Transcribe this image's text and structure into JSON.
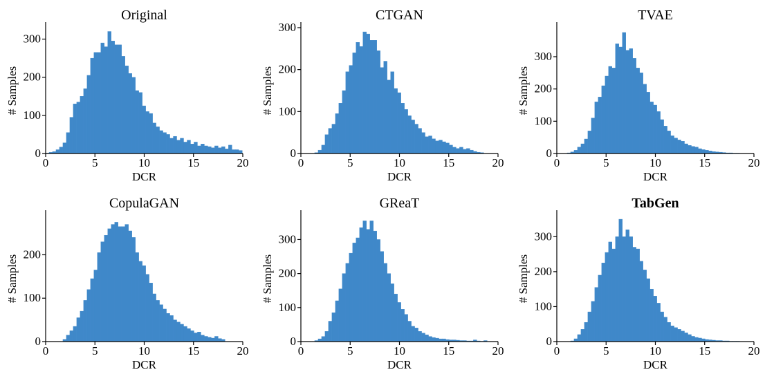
{
  "colors": {
    "bar": "#3f88c9",
    "axis": "#000000"
  },
  "chart_data": [
    {
      "type": "bar",
      "title": "Original",
      "title_bold": false,
      "xlabel": "DCR",
      "ylabel": "# Samples",
      "xlim": [
        0,
        20
      ],
      "ylim": [
        0,
        330
      ],
      "xticks": [
        0,
        5,
        10,
        15,
        20
      ],
      "yticks": [
        0,
        100,
        200,
        300
      ],
      "grid": false,
      "bin_width": 0.35,
      "values": [
        1,
        3,
        5,
        10,
        17,
        28,
        55,
        95,
        130,
        135,
        150,
        170,
        205,
        250,
        265,
        265,
        290,
        280,
        320,
        295,
        285,
        285,
        255,
        230,
        210,
        200,
        165,
        160,
        125,
        110,
        105,
        80,
        70,
        60,
        55,
        50,
        40,
        45,
        35,
        40,
        30,
        35,
        25,
        30,
        20,
        25,
        20,
        18,
        15,
        20,
        15,
        18,
        12,
        22,
        10,
        10,
        8
      ]
    },
    {
      "type": "bar",
      "title": "CTGAN",
      "title_bold": false,
      "xlabel": "DCR",
      "ylabel": "# Samples",
      "xlim": [
        0,
        20
      ],
      "ylim": [
        0,
        300
      ],
      "xticks": [
        0,
        5,
        10,
        15,
        20
      ],
      "yticks": [
        0,
        100,
        200,
        300
      ],
      "grid": false,
      "bin_width": 0.35,
      "values": [
        0,
        0,
        0,
        0,
        2,
        8,
        20,
        45,
        60,
        70,
        95,
        120,
        150,
        195,
        210,
        240,
        265,
        255,
        290,
        285,
        270,
        270,
        245,
        205,
        220,
        175,
        195,
        155,
        145,
        120,
        105,
        90,
        80,
        70,
        60,
        50,
        40,
        42,
        35,
        30,
        32,
        28,
        25,
        20,
        15,
        12,
        15,
        10,
        12,
        8,
        5,
        3,
        2
      ]
    },
    {
      "type": "bar",
      "title": "TVAE",
      "title_bold": false,
      "xlabel": "DCR",
      "ylabel": "# Samples",
      "xlim": [
        0,
        20
      ],
      "ylim": [
        0,
        390
      ],
      "xticks": [
        0,
        5,
        10,
        15,
        20
      ],
      "yticks": [
        0,
        100,
        200,
        300
      ],
      "grid": false,
      "bin_width": 0.35,
      "values": [
        0,
        0,
        0,
        2,
        5,
        10,
        20,
        30,
        45,
        70,
        110,
        160,
        175,
        210,
        240,
        270,
        265,
        340,
        330,
        375,
        320,
        325,
        295,
        265,
        250,
        215,
        190,
        160,
        150,
        130,
        105,
        85,
        70,
        55,
        48,
        42,
        38,
        30,
        25,
        22,
        20,
        15,
        12,
        10,
        8,
        6,
        5,
        4,
        3,
        2,
        2,
        1,
        1,
        0,
        0,
        0,
        0
      ]
    },
    {
      "type": "bar",
      "title": "CopulaGAN",
      "title_bold": false,
      "xlabel": "DCR",
      "ylabel": "# Samples",
      "xlim": [
        0,
        20
      ],
      "ylim": [
        0,
        290
      ],
      "xticks": [
        0,
        5,
        10,
        15,
        20
      ],
      "yticks": [
        0,
        100,
        200,
        300
      ],
      "grid": false,
      "bin_width": 0.35,
      "values": [
        0,
        0,
        0,
        0,
        0,
        5,
        15,
        25,
        35,
        55,
        70,
        95,
        120,
        145,
        165,
        205,
        230,
        245,
        260,
        270,
        275,
        265,
        265,
        270,
        255,
        240,
        205,
        185,
        175,
        155,
        135,
        110,
        95,
        85,
        75,
        65,
        60,
        50,
        45,
        40,
        35,
        30,
        25,
        20,
        22,
        15,
        12,
        10,
        8,
        12,
        7,
        5
      ]
    },
    {
      "type": "bar",
      "title": "GReaT",
      "title_bold": false,
      "xlabel": "DCR",
      "ylabel": "# Samples",
      "xlim": [
        0,
        20
      ],
      "ylim": [
        0,
        370
      ],
      "xticks": [
        0,
        5,
        10,
        15,
        20
      ],
      "yticks": [
        0,
        100,
        200,
        300
      ],
      "grid": false,
      "bin_width": 0.35,
      "values": [
        0,
        0,
        0,
        0,
        3,
        8,
        15,
        30,
        60,
        85,
        120,
        155,
        200,
        230,
        260,
        290,
        305,
        335,
        355,
        330,
        355,
        325,
        300,
        265,
        230,
        200,
        170,
        140,
        115,
        95,
        80,
        60,
        45,
        40,
        30,
        25,
        20,
        15,
        12,
        10,
        8,
        8,
        6,
        5,
        5,
        4,
        3,
        3,
        2,
        2,
        5,
        2,
        1,
        3
      ]
    },
    {
      "type": "bar",
      "title": "TabGen",
      "title_bold": true,
      "xlabel": "DCR",
      "ylabel": "# Samples",
      "xlim": [
        0,
        20
      ],
      "ylim": [
        0,
        360
      ],
      "xticks": [
        0,
        5,
        10,
        15,
        20
      ],
      "yticks": [
        0,
        100,
        200,
        300
      ],
      "grid": false,
      "bin_width": 0.35,
      "values": [
        0,
        0,
        0,
        0,
        2,
        8,
        20,
        35,
        55,
        85,
        115,
        155,
        190,
        225,
        255,
        285,
        265,
        300,
        350,
        300,
        320,
        300,
        270,
        265,
        230,
        205,
        180,
        150,
        130,
        110,
        85,
        70,
        55,
        45,
        40,
        35,
        30,
        25,
        20,
        15,
        12,
        10,
        8,
        6,
        5,
        4,
        3,
        3,
        2,
        2,
        1,
        1,
        1,
        0,
        0,
        0,
        0
      ]
    }
  ]
}
